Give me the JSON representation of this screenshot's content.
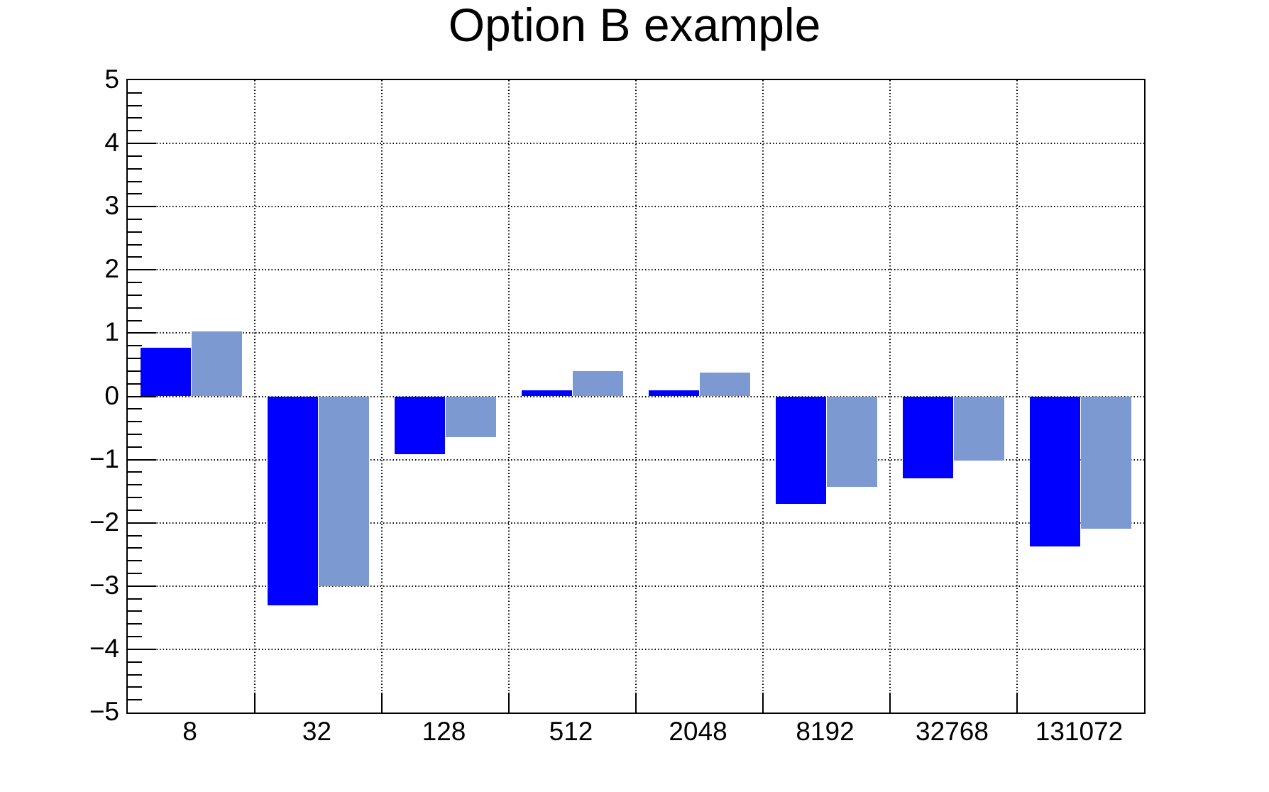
{
  "chart_data": {
    "type": "bar",
    "title": "Option B example",
    "xlabel": "",
    "ylabel": "",
    "categories": [
      "8",
      "32",
      "128",
      "512",
      "2048",
      "8192",
      "32768",
      "131072"
    ],
    "series": [
      {
        "color": "#0000ff",
        "bar_offset": 0.1,
        "bar_width": 0.4,
        "values": [
          0.77,
          -3.31,
          -0.91,
          0.1,
          0.1,
          -1.7,
          -1.3,
          -2.37
        ]
      },
      {
        "color": "#7d99d1",
        "bar_offset": 0.5,
        "bar_width": 0.4,
        "values": [
          1.03,
          -3.0,
          -0.65,
          0.4,
          0.38,
          -1.43,
          -1.02,
          -2.09
        ]
      }
    ],
    "ylim": [
      -5,
      5
    ],
    "y_major_ticks": [
      5,
      4,
      3,
      2,
      1,
      0,
      -1,
      -2,
      -3,
      -4,
      -5
    ],
    "y_tick_labels": [
      "5",
      "4",
      "3",
      "2",
      "1",
      "0",
      "−1",
      "−2",
      "−3",
      "−4",
      "−5"
    ],
    "y_minor_step": 0.2,
    "grid": true,
    "grid_style": "dotted",
    "legend": "none",
    "baseline": 0
  },
  "colors": {
    "background": "#ffffff",
    "frame": "#000000",
    "grid": "#000000",
    "tick": "#000000",
    "text": "#000000",
    "series1": "#0000ff",
    "series2": "#7d99d1"
  }
}
